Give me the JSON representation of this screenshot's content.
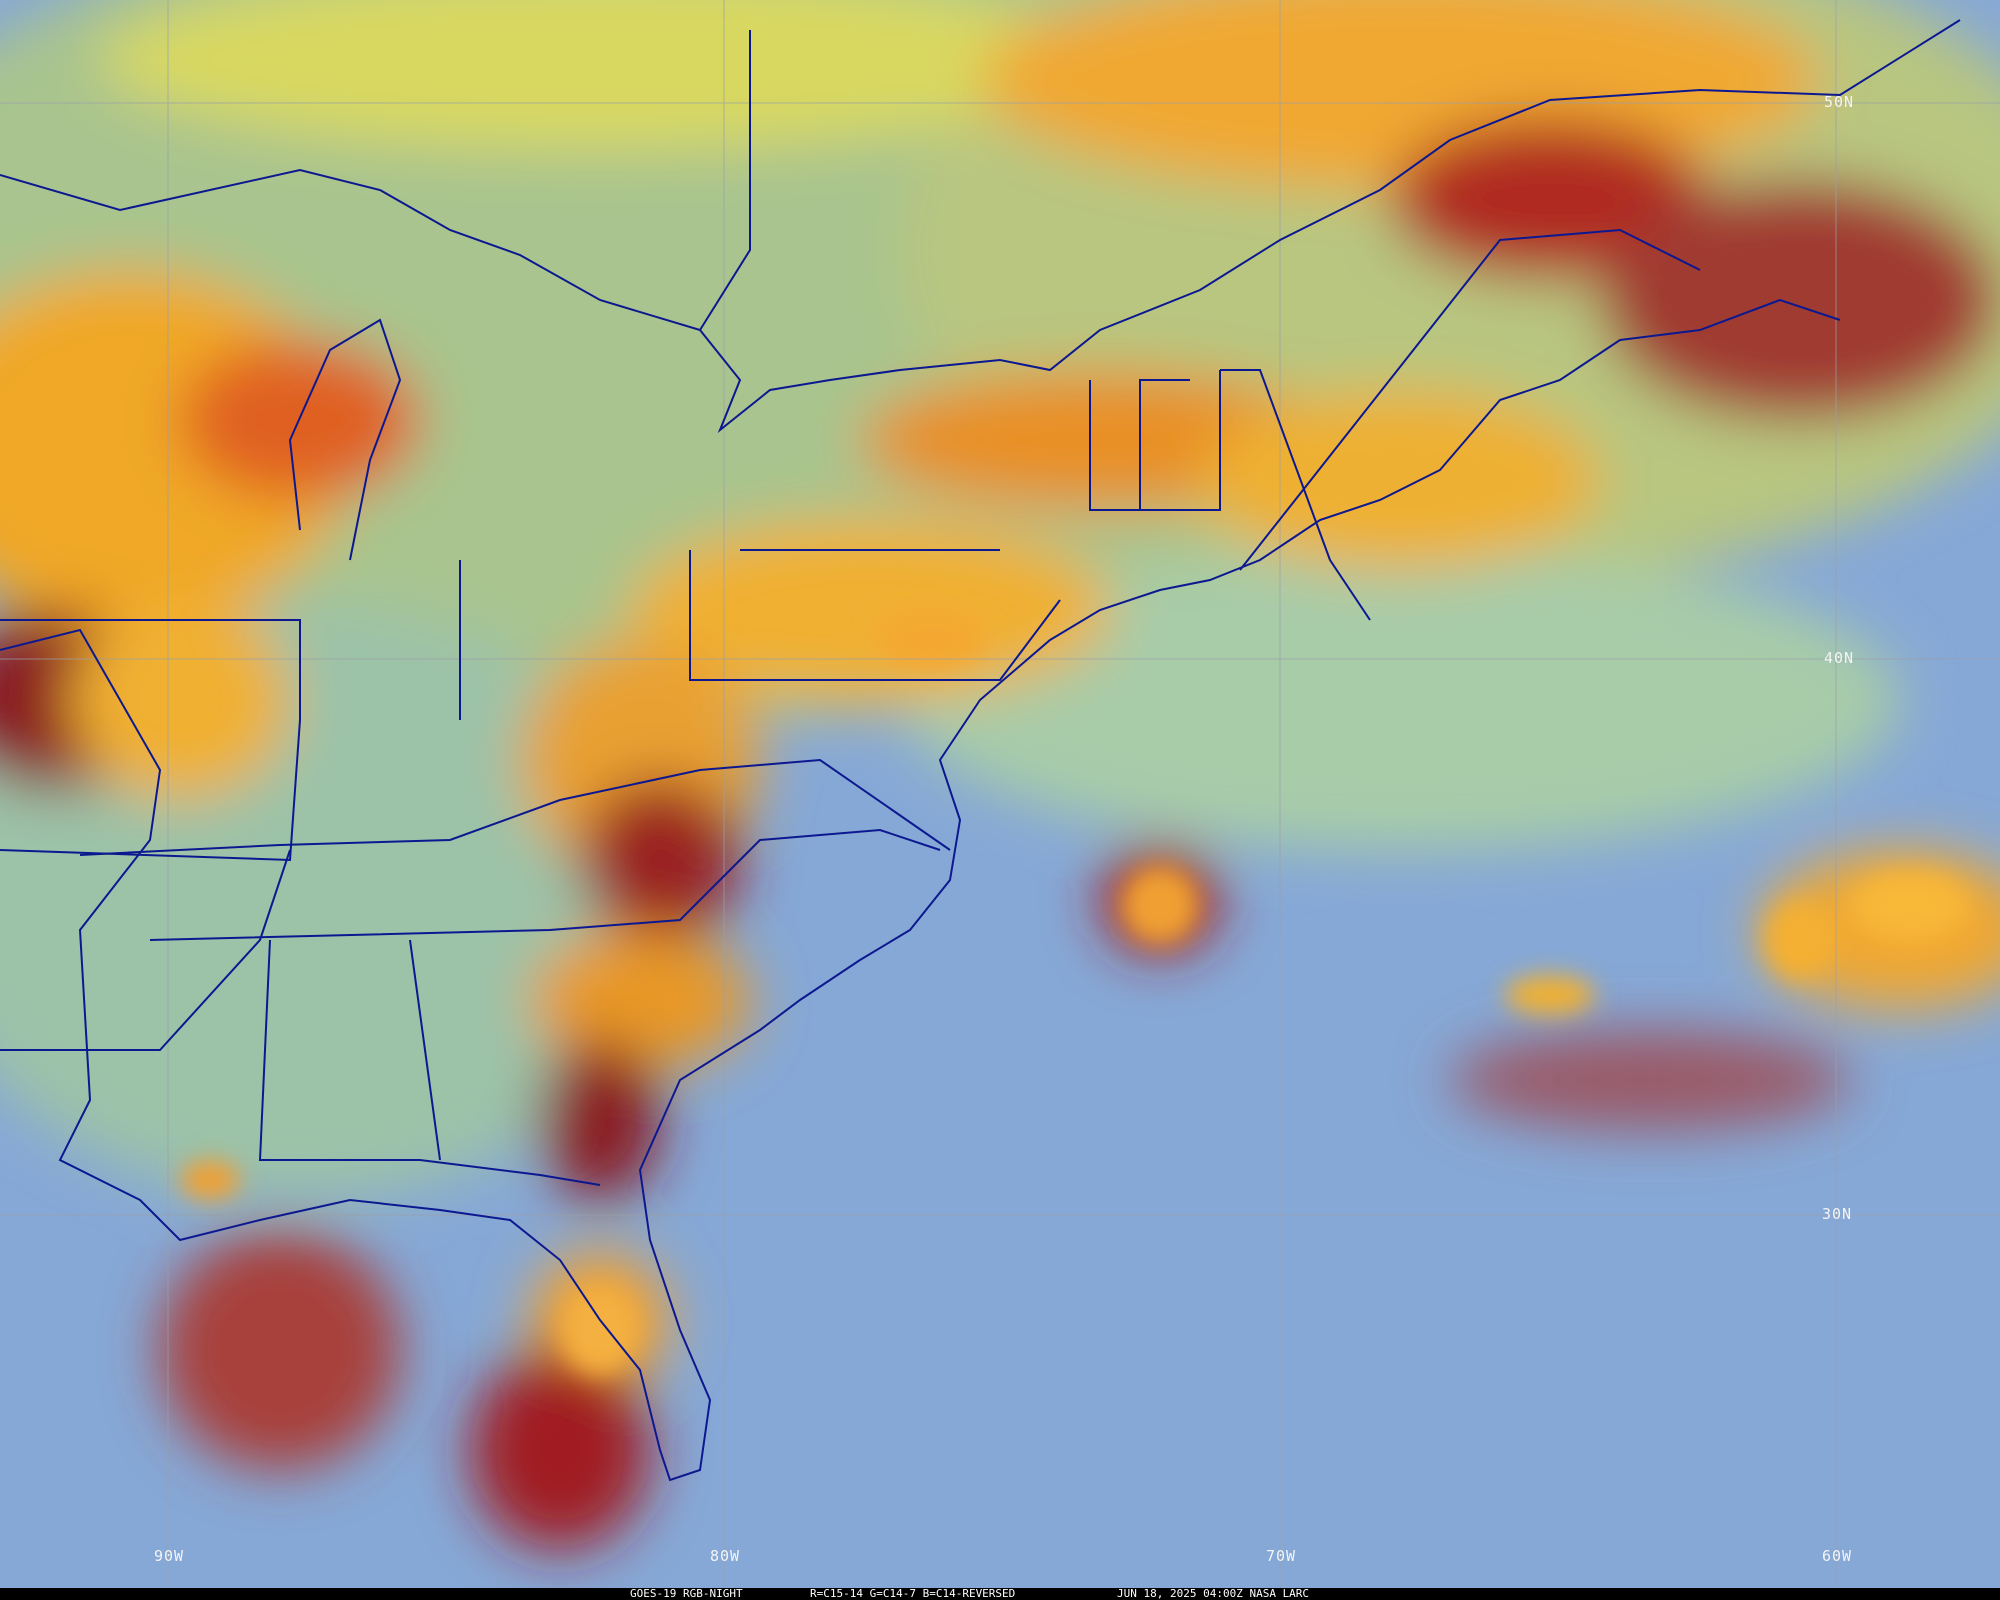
{
  "caption": {
    "satellite": "GOES-19 RGB-NIGHT",
    "channels": "R=C15-14 G=C14-7 B=C14-REVERSED",
    "timestamp": "JUN 18, 2025 04:00Z NASA LARC"
  },
  "grid_labels": {
    "latitudes": [
      "50N",
      "40N",
      "30N"
    ],
    "longitudes": [
      "90W",
      "80W",
      "70W",
      "60W"
    ]
  },
  "colors": {
    "ocean": "#86a8d6",
    "clear_land": "#a8c890",
    "low_cloud": "#d8e070",
    "mid_cloud": "#f0b030",
    "deep_cloud": "#8a1a22",
    "borders": "#0c1890",
    "gridlines": "#9aa0a8"
  }
}
